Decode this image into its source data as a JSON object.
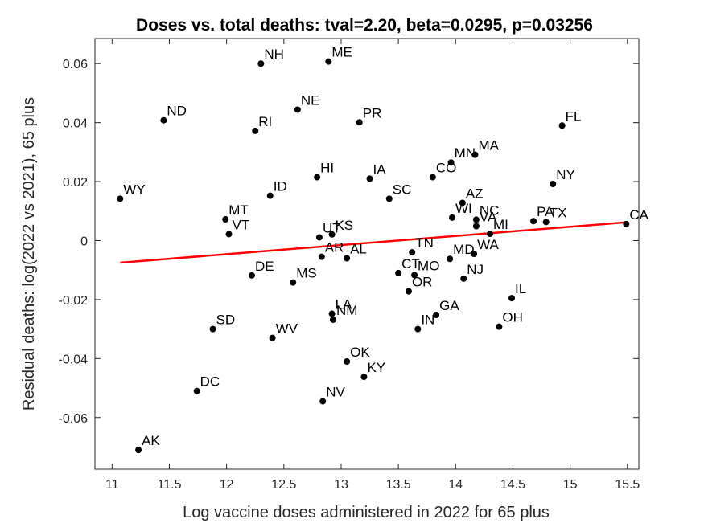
{
  "chart_data": {
    "type": "scatter",
    "title": "Doses vs. total deaths: tval=2.20, beta=0.0295, p=0.03256",
    "xlabel": "Log vaccine doses administered in 2022 for 65 plus",
    "ylabel": "Residual deaths: log(2022 vs 2021), 65 plus",
    "xlim": [
      10.85,
      15.6
    ],
    "ylim": [
      -0.0775,
      0.0685
    ],
    "xticks": [
      11,
      11.5,
      12,
      12.5,
      13,
      13.5,
      14,
      14.5,
      15,
      15.5
    ],
    "xtick_labels": [
      "11",
      "11.5",
      "12",
      "12.5",
      "13",
      "13.5",
      "14",
      "14.5",
      "15",
      "15.5"
    ],
    "yticks": [
      -0.06,
      -0.04,
      -0.02,
      0,
      0.02,
      0.04,
      0.06
    ],
    "ytick_labels": [
      "-0.06",
      "-0.04",
      "-0.02",
      "0",
      "0.02",
      "0.04",
      "0.06"
    ],
    "grid": false,
    "point_color": "#000000",
    "fit_line": {
      "color": "#ff0000",
      "x": [
        11.07,
        15.49
      ],
      "y": [
        -0.0075,
        0.0062
      ]
    },
    "points": [
      {
        "label": "NH",
        "x": 12.3,
        "y": 0.06
      },
      {
        "label": "ME",
        "x": 12.89,
        "y": 0.0607
      },
      {
        "label": "ND",
        "x": 11.45,
        "y": 0.0408
      },
      {
        "label": "NE",
        "x": 12.62,
        "y": 0.0444
      },
      {
        "label": "RI",
        "x": 12.25,
        "y": 0.0372
      },
      {
        "label": "PR",
        "x": 13.16,
        "y": 0.0401
      },
      {
        "label": "FL",
        "x": 14.93,
        "y": 0.039
      },
      {
        "label": "MA",
        "x": 14.17,
        "y": 0.0291
      },
      {
        "label": "MN",
        "x": 13.96,
        "y": 0.0265
      },
      {
        "label": "CO",
        "x": 13.8,
        "y": 0.0215
      },
      {
        "label": "HI",
        "x": 12.79,
        "y": 0.0215
      },
      {
        "label": "IA",
        "x": 13.25,
        "y": 0.021
      },
      {
        "label": "NY",
        "x": 14.85,
        "y": 0.0192
      },
      {
        "label": "WY",
        "x": 11.07,
        "y": 0.0142
      },
      {
        "label": "ID",
        "x": 12.38,
        "y": 0.0152
      },
      {
        "label": "SC",
        "x": 13.42,
        "y": 0.0142
      },
      {
        "label": "AZ",
        "x": 14.06,
        "y": 0.0128
      },
      {
        "label": "WI",
        "x": 13.97,
        "y": 0.0078
      },
      {
        "label": "NC",
        "x": 14.18,
        "y": 0.0071
      },
      {
        "label": "VA",
        "x": 14.18,
        "y": 0.0049
      },
      {
        "label": "MI",
        "x": 14.3,
        "y": 0.0023
      },
      {
        "label": "PA",
        "x": 14.68,
        "y": 0.0066
      },
      {
        "label": "TX",
        "x": 14.79,
        "y": 0.0063
      },
      {
        "label": "CA",
        "x": 15.49,
        "y": 0.0056
      },
      {
        "label": "MT",
        "x": 11.99,
        "y": 0.0072
      },
      {
        "label": "VT",
        "x": 12.02,
        "y": 0.0022
      },
      {
        "label": "UT",
        "x": 12.81,
        "y": 0.0011
      },
      {
        "label": "KS",
        "x": 12.92,
        "y": 0.0021
      },
      {
        "label": "TN",
        "x": 13.62,
        "y": -0.004
      },
      {
        "label": "MD",
        "x": 13.95,
        "y": -0.0062
      },
      {
        "label": "WA",
        "x": 14.16,
        "y": -0.0045
      },
      {
        "label": "AR",
        "x": 12.83,
        "y": -0.0055
      },
      {
        "label": "AL",
        "x": 13.05,
        "y": -0.006
      },
      {
        "label": "DE",
        "x": 12.22,
        "y": -0.0118
      },
      {
        "label": "MS",
        "x": 12.58,
        "y": -0.0142
      },
      {
        "label": "CT",
        "x": 13.5,
        "y": -0.011
      },
      {
        "label": "MO",
        "x": 13.64,
        "y": -0.0117
      },
      {
        "label": "OR",
        "x": 13.59,
        "y": -0.0172
      },
      {
        "label": "NJ",
        "x": 14.07,
        "y": -0.0129
      },
      {
        "label": "IL",
        "x": 14.49,
        "y": -0.0195
      },
      {
        "label": "LA",
        "x": 12.92,
        "y": -0.0248
      },
      {
        "label": "NM",
        "x": 12.93,
        "y": -0.0268
      },
      {
        "label": "GA",
        "x": 13.83,
        "y": -0.0252
      },
      {
        "label": "IN",
        "x": 13.67,
        "y": -0.03
      },
      {
        "label": "OH",
        "x": 14.38,
        "y": -0.0292
      },
      {
        "label": "SD",
        "x": 11.88,
        "y": -0.03
      },
      {
        "label": "WV",
        "x": 12.4,
        "y": -0.033
      },
      {
        "label": "OK",
        "x": 13.05,
        "y": -0.041
      },
      {
        "label": "KY",
        "x": 13.2,
        "y": -0.0462
      },
      {
        "label": "DC",
        "x": 11.74,
        "y": -0.051
      },
      {
        "label": "NV",
        "x": 12.84,
        "y": -0.0545
      },
      {
        "label": "AK",
        "x": 11.23,
        "y": -0.071
      }
    ]
  }
}
